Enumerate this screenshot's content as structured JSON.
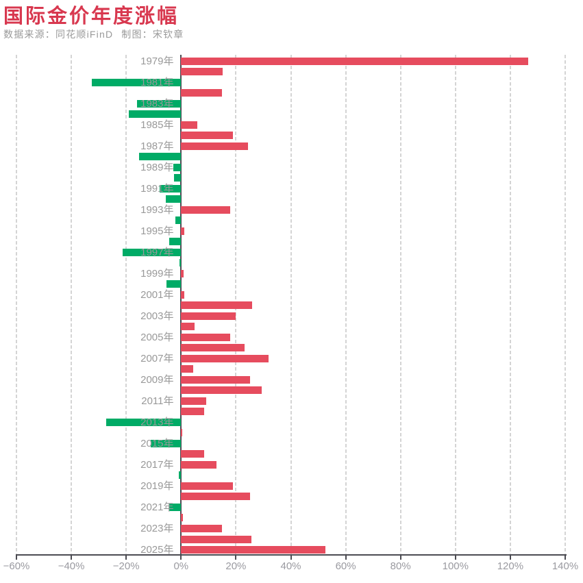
{
  "title": "国际金价年度涨幅",
  "subtitle": {
    "source_note": "数据来源：同花顺iFinD",
    "credit_note": "制图：宋钦章"
  },
  "colors": {
    "title": "#d8384f",
    "positive_bar": "#e64c5e",
    "negative_bar": "#00ab66",
    "label_gray": "#999999",
    "gridline": "#d4d4d4",
    "axis": "#4b4b52"
  },
  "chart_data": {
    "type": "bar",
    "orientation": "horizontal",
    "title": "国际金价年度涨幅",
    "xlabel": "",
    "ylabel": "",
    "x_axis": {
      "tick_labels": [
        "−60%",
        "−40%",
        "−20%",
        "0%",
        "20%",
        "40%",
        "60%",
        "80%",
        "100%",
        "120%",
        "140%"
      ],
      "tick_values": [
        -60,
        -40,
        -20,
        0,
        20,
        40,
        60,
        80,
        100,
        120,
        140
      ],
      "min": -60,
      "max": 140,
      "grid": "dashed"
    },
    "year_suffix": "年",
    "years": [
      1979,
      1980,
      1981,
      1982,
      1983,
      1984,
      1985,
      1986,
      1987,
      1988,
      1989,
      1990,
      1991,
      1992,
      1993,
      1994,
      1995,
      1996,
      1997,
      1998,
      1999,
      2000,
      2001,
      2002,
      2003,
      2004,
      2005,
      2006,
      2007,
      2008,
      2009,
      2010,
      2011,
      2012,
      2013,
      2014,
      2015,
      2016,
      2017,
      2018,
      2019,
      2020,
      2021,
      2022,
      2023,
      2024,
      2025
    ],
    "values": [
      126.5,
      15.2,
      -32.5,
      14.9,
      -16.0,
      -19.1,
      6.0,
      19.0,
      24.5,
      -15.2,
      -2.8,
      -2.6,
      -7.8,
      -5.5,
      17.9,
      -2.2,
      1.2,
      -4.4,
      -21.2,
      -0.7,
      0.9,
      -5.4,
      1.2,
      25.8,
      20.0,
      4.9,
      17.9,
      23.2,
      32.0,
      4.4,
      25.1,
      29.3,
      9.2,
      8.4,
      -27.4,
      0.5,
      -11.1,
      8.4,
      13.0,
      -0.8,
      18.8,
      25.1,
      -4.3,
      0.7,
      14.9,
      25.7,
      52.6
    ],
    "labeled_years": [
      1979,
      1981,
      1983,
      1985,
      1987,
      1989,
      1991,
      1993,
      1995,
      1997,
      1999,
      2001,
      2003,
      2005,
      2007,
      2009,
      2011,
      2013,
      2015,
      2017,
      2019,
      2021,
      2023,
      2025
    ]
  }
}
